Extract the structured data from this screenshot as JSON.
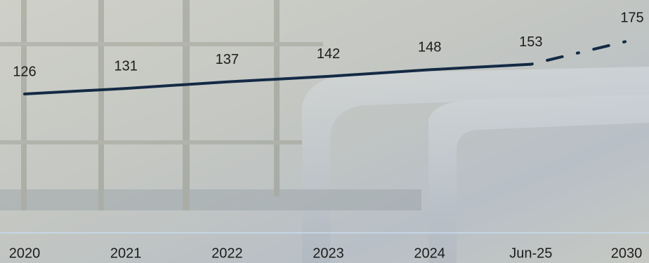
{
  "chart_data": {
    "type": "line",
    "categories": [
      "2020",
      "2021",
      "2022",
      "2023",
      "2024",
      "Jun-25",
      "2030"
    ],
    "values": [
      126,
      131,
      137,
      142,
      148,
      153,
      175
    ],
    "color": "#142a45",
    "dash_from_index": 5
  }
}
